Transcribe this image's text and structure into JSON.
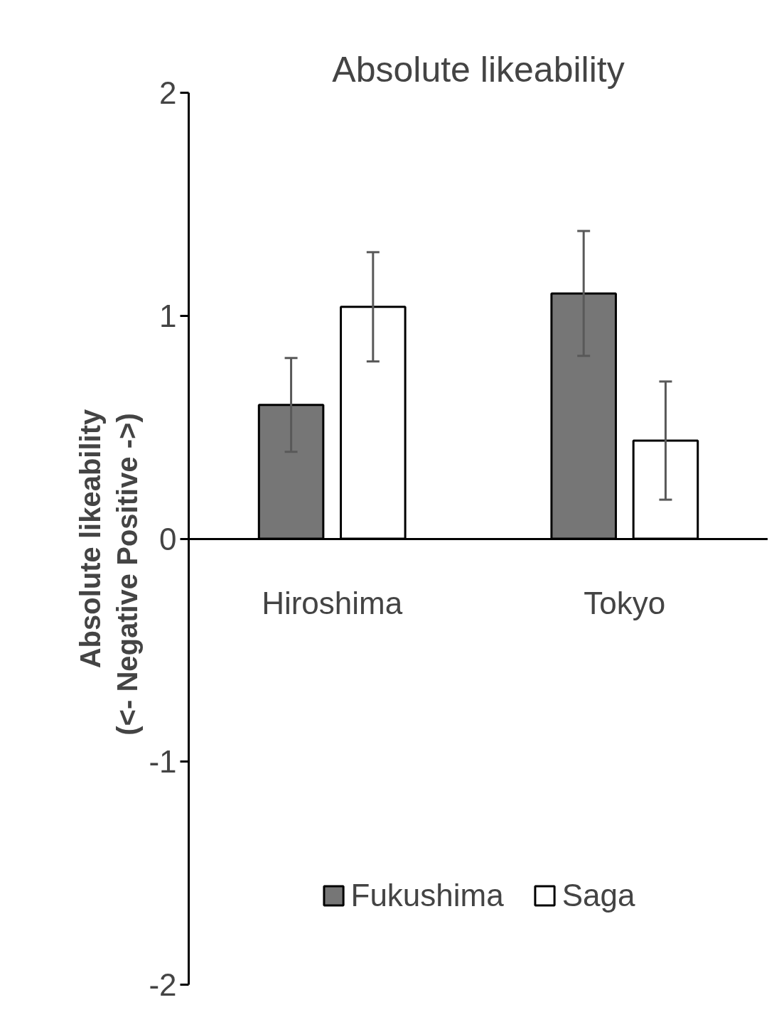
{
  "chart_data": {
    "type": "bar",
    "title": "Absolute likeability",
    "ylabel": "Absolute likeability\n(<- Negative          Positive ->)",
    "categories": [
      "Hiroshima",
      "Tokyo"
    ],
    "series": [
      {
        "name": "Fukushima",
        "color": "#767676",
        "values": [
          0.6,
          1.1
        ],
        "errors": [
          0.21,
          0.28
        ]
      },
      {
        "name": "Saga",
        "color": "#ffffff",
        "values": [
          1.04,
          0.44
        ],
        "errors": [
          0.245,
          0.265
        ]
      }
    ],
    "ylim": [
      -2,
      2
    ],
    "yticks": [
      -2,
      -1,
      0,
      1,
      2
    ],
    "grid": false,
    "legend": "bottom"
  }
}
